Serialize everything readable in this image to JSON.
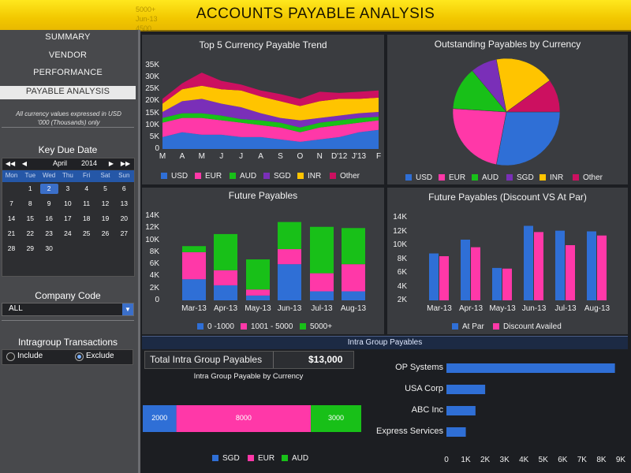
{
  "header": {
    "title": "ACCOUNTS PAYABLE ANALYSIS",
    "tooltip_lines": [
      "5000+",
      "Jun-13",
      "4500"
    ]
  },
  "nav": [
    "SUMMARY",
    "VENDOR",
    "PERFORMANCE",
    "PAYABLE ANALYSIS"
  ],
  "note": "All currency values expressed in USD '000 (Thousands) only",
  "calendar": {
    "title": "Key Due Date",
    "nav_labels": [
      "◀◀",
      "◀",
      "▶",
      "▶▶"
    ],
    "month": "April",
    "year": "2014",
    "days_of_week": [
      "Mon",
      "Tue",
      "Wed",
      "Thu",
      "Fri",
      "Sat",
      "Sun"
    ],
    "weeks": [
      [
        "",
        "1",
        "2",
        "3",
        "4",
        "5",
        "6"
      ],
      [
        "7",
        "8",
        "9",
        "10",
        "11",
        "12",
        "13"
      ],
      [
        "14",
        "15",
        "16",
        "17",
        "18",
        "19",
        "20"
      ],
      [
        "21",
        "22",
        "23",
        "24",
        "25",
        "26",
        "27"
      ],
      [
        "28",
        "29",
        "30",
        "",
        "",
        "",
        ""
      ]
    ],
    "selected": "2"
  },
  "company": {
    "title": "Company Code",
    "value": "ALL"
  },
  "intragroup": {
    "title": "Intragroup Transactions",
    "options": [
      "Include",
      "Exclude"
    ],
    "selected": "Exclude"
  },
  "colors": {
    "USD": "#2f6fd6",
    "EUR": "#ff38a8",
    "AUD": "#18c018",
    "SGD": "#7a2fb8",
    "INR": "#ffc400",
    "Other": "#cc1060"
  },
  "chart_data": [
    {
      "type": "area",
      "title": "Top 5 Currency Payable Trend",
      "categories": [
        "M",
        "A",
        "M",
        "J",
        "J",
        "A",
        "S",
        "O",
        "N",
        "D'12",
        "J'13",
        "F"
      ],
      "y_ticks": [
        "35K",
        "30K",
        "25K",
        "20K",
        "15K",
        "10K",
        "5K",
        "0"
      ],
      "ylim": [
        0,
        35000
      ],
      "stacked": true,
      "series": [
        {
          "name": "USD",
          "values": [
            5000,
            7000,
            6000,
            6000,
            5000,
            5000,
            4000,
            3000,
            4000,
            5000,
            7000,
            8000
          ]
        },
        {
          "name": "EUR",
          "values": [
            6000,
            6000,
            7000,
            6000,
            6000,
            5000,
            5000,
            4000,
            5000,
            5000,
            4000,
            4000
          ]
        },
        {
          "name": "AUD",
          "values": [
            2000,
            2000,
            2000,
            2000,
            1500,
            2000,
            2000,
            2000,
            2000,
            2000,
            2000,
            1500
          ]
        },
        {
          "name": "SGD",
          "values": [
            2500,
            5000,
            6000,
            5000,
            5000,
            3000,
            2000,
            3000,
            2000,
            2000,
            2000,
            2000
          ]
        },
        {
          "name": "INR",
          "values": [
            3500,
            5000,
            5500,
            6000,
            7000,
            7000,
            7000,
            6000,
            7000,
            7000,
            6000,
            6000
          ]
        },
        {
          "name": "Other",
          "values": [
            2000,
            2500,
            5500,
            3500,
            2500,
            2500,
            3000,
            3000,
            4000,
            2500,
            3000,
            3000
          ]
        }
      ]
    },
    {
      "type": "pie",
      "title": "Outstanding Payables by Currency",
      "series": [
        {
          "name": "USD",
          "values": [
            28
          ]
        },
        {
          "name": "EUR",
          "values": [
            23
          ]
        },
        {
          "name": "AUD",
          "values": [
            13
          ]
        },
        {
          "name": "SGD",
          "values": [
            8
          ]
        },
        {
          "name": "INR",
          "values": [
            18
          ]
        },
        {
          "name": "Other",
          "values": [
            10
          ]
        }
      ]
    },
    {
      "type": "bar",
      "title": "Future Payables",
      "stacked": true,
      "categories": [
        "Mar-13",
        "Apr-13",
        "May-13",
        "Jun-13",
        "Jul-13",
        "Aug-13"
      ],
      "y_ticks": [
        "14K",
        "12K",
        "10K",
        "8K",
        "6K",
        "4K",
        "2K",
        "0"
      ],
      "ylim": [
        0,
        14000
      ],
      "series": [
        {
          "name": "0 -1000",
          "color": "#2f6fd6",
          "values": [
            3500,
            2500,
            800,
            6000,
            1500,
            1500
          ]
        },
        {
          "name": "1001 - 5000",
          "color": "#ff38a8",
          "values": [
            4500,
            2500,
            1000,
            2500,
            3000,
            4500
          ]
        },
        {
          "name": "5000+",
          "color": "#18c018",
          "values": [
            1000,
            6000,
            5000,
            4500,
            7700,
            6000
          ]
        }
      ]
    },
    {
      "type": "bar",
      "title": "Future Payables (Discount VS At Par)",
      "categories": [
        "Mar-13",
        "Apr-13",
        "May-13",
        "Jun-13",
        "Jul-13",
        "Aug-13"
      ],
      "y_ticks": [
        "14K",
        "12K",
        "10K",
        "8K",
        "6K",
        "4K",
        "2K"
      ],
      "ylim": [
        2000,
        14000
      ],
      "series": [
        {
          "name": "At Par",
          "color": "#2f6fd6",
          "values": [
            8800,
            10800,
            6700,
            12800,
            12100,
            12000
          ]
        },
        {
          "name": "Discount Availed",
          "color": "#ff38a8",
          "values": [
            8400,
            9700,
            6600,
            11900,
            10000,
            11400
          ]
        }
      ]
    },
    {
      "type": "bar",
      "title": "Intra Group Payable by Currency",
      "orientation": "horizontal-stacked",
      "series": [
        {
          "name": "SGD",
          "color": "#2f6fd6",
          "values": [
            2000
          ]
        },
        {
          "name": "EUR",
          "color": "#ff38a8",
          "values": [
            8000
          ]
        },
        {
          "name": "AUD",
          "color": "#18c018",
          "values": [
            3000
          ]
        }
      ]
    },
    {
      "type": "bar",
      "orientation": "horizontal",
      "categories": [
        "OP Systems",
        "USA Corp",
        "ABC Inc",
        "Express Services"
      ],
      "values": [
        8700,
        2000,
        1500,
        1000
      ],
      "x_ticks": [
        "0",
        "1K",
        "2K",
        "3K",
        "4K",
        "5K",
        "6K",
        "7K",
        "8K",
        "9K"
      ],
      "xlim": [
        0,
        9000
      ]
    }
  ],
  "intra": {
    "header": "Intra Group Payables",
    "total_label": "Total Intra Group Payables",
    "total_value": "$13,000"
  }
}
